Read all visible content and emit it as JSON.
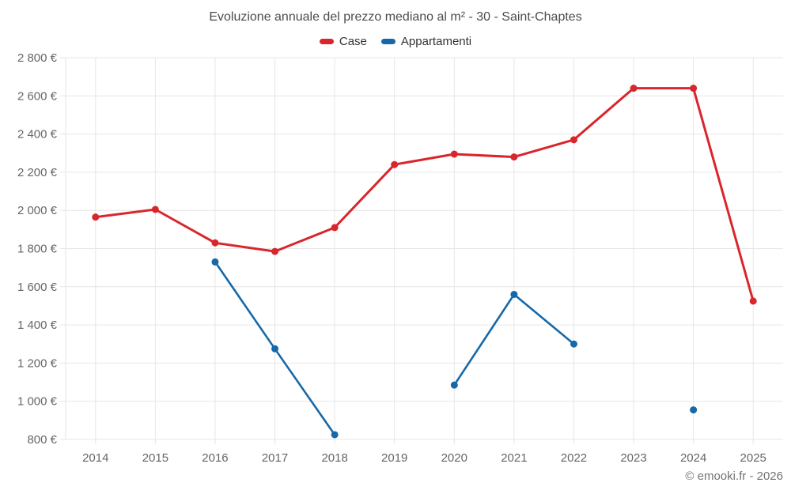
{
  "title": "Evoluzione annuale del prezzo mediano al m² - 30 - Saint-Chaptes",
  "legend": {
    "items": [
      {
        "label": "Case",
        "color": "#d9262c"
      },
      {
        "label": "Appartamenti",
        "color": "#1668a8"
      }
    ]
  },
  "copyright": "© emooki.fr - 2026",
  "chart_data": {
    "type": "line",
    "title": "Evoluzione annuale del prezzo mediano al m² - 30 - Saint-Chaptes",
    "categories": [
      "2014",
      "2015",
      "2016",
      "2017",
      "2018",
      "2019",
      "2020",
      "2021",
      "2022",
      "2023",
      "2024",
      "2025"
    ],
    "series": [
      {
        "name": "Case",
        "color": "#d9262c",
        "values": [
          1965,
          2005,
          1830,
          1785,
          1910,
          2240,
          2295,
          2280,
          2370,
          2640,
          2640,
          1525
        ]
      },
      {
        "name": "Appartamenti",
        "color": "#1668a8",
        "values": [
          null,
          null,
          1730,
          1275,
          825,
          null,
          1085,
          1560,
          1300,
          null,
          955,
          null
        ]
      }
    ],
    "xlabel": "",
    "ylabel": "",
    "ylim": [
      800,
      2800
    ],
    "y_ticks": [
      800,
      1000,
      1200,
      1400,
      1600,
      1800,
      2000,
      2200,
      2400,
      2600,
      2800
    ],
    "y_tick_labels": [
      "800 €",
      "1 000 €",
      "1 200 €",
      "1 400 €",
      "1 600 €",
      "1 800 €",
      "2 000 €",
      "2 200 €",
      "2 400 €",
      "2 600 €",
      "2 800 €"
    ],
    "grid": true,
    "legend_position": "top"
  }
}
